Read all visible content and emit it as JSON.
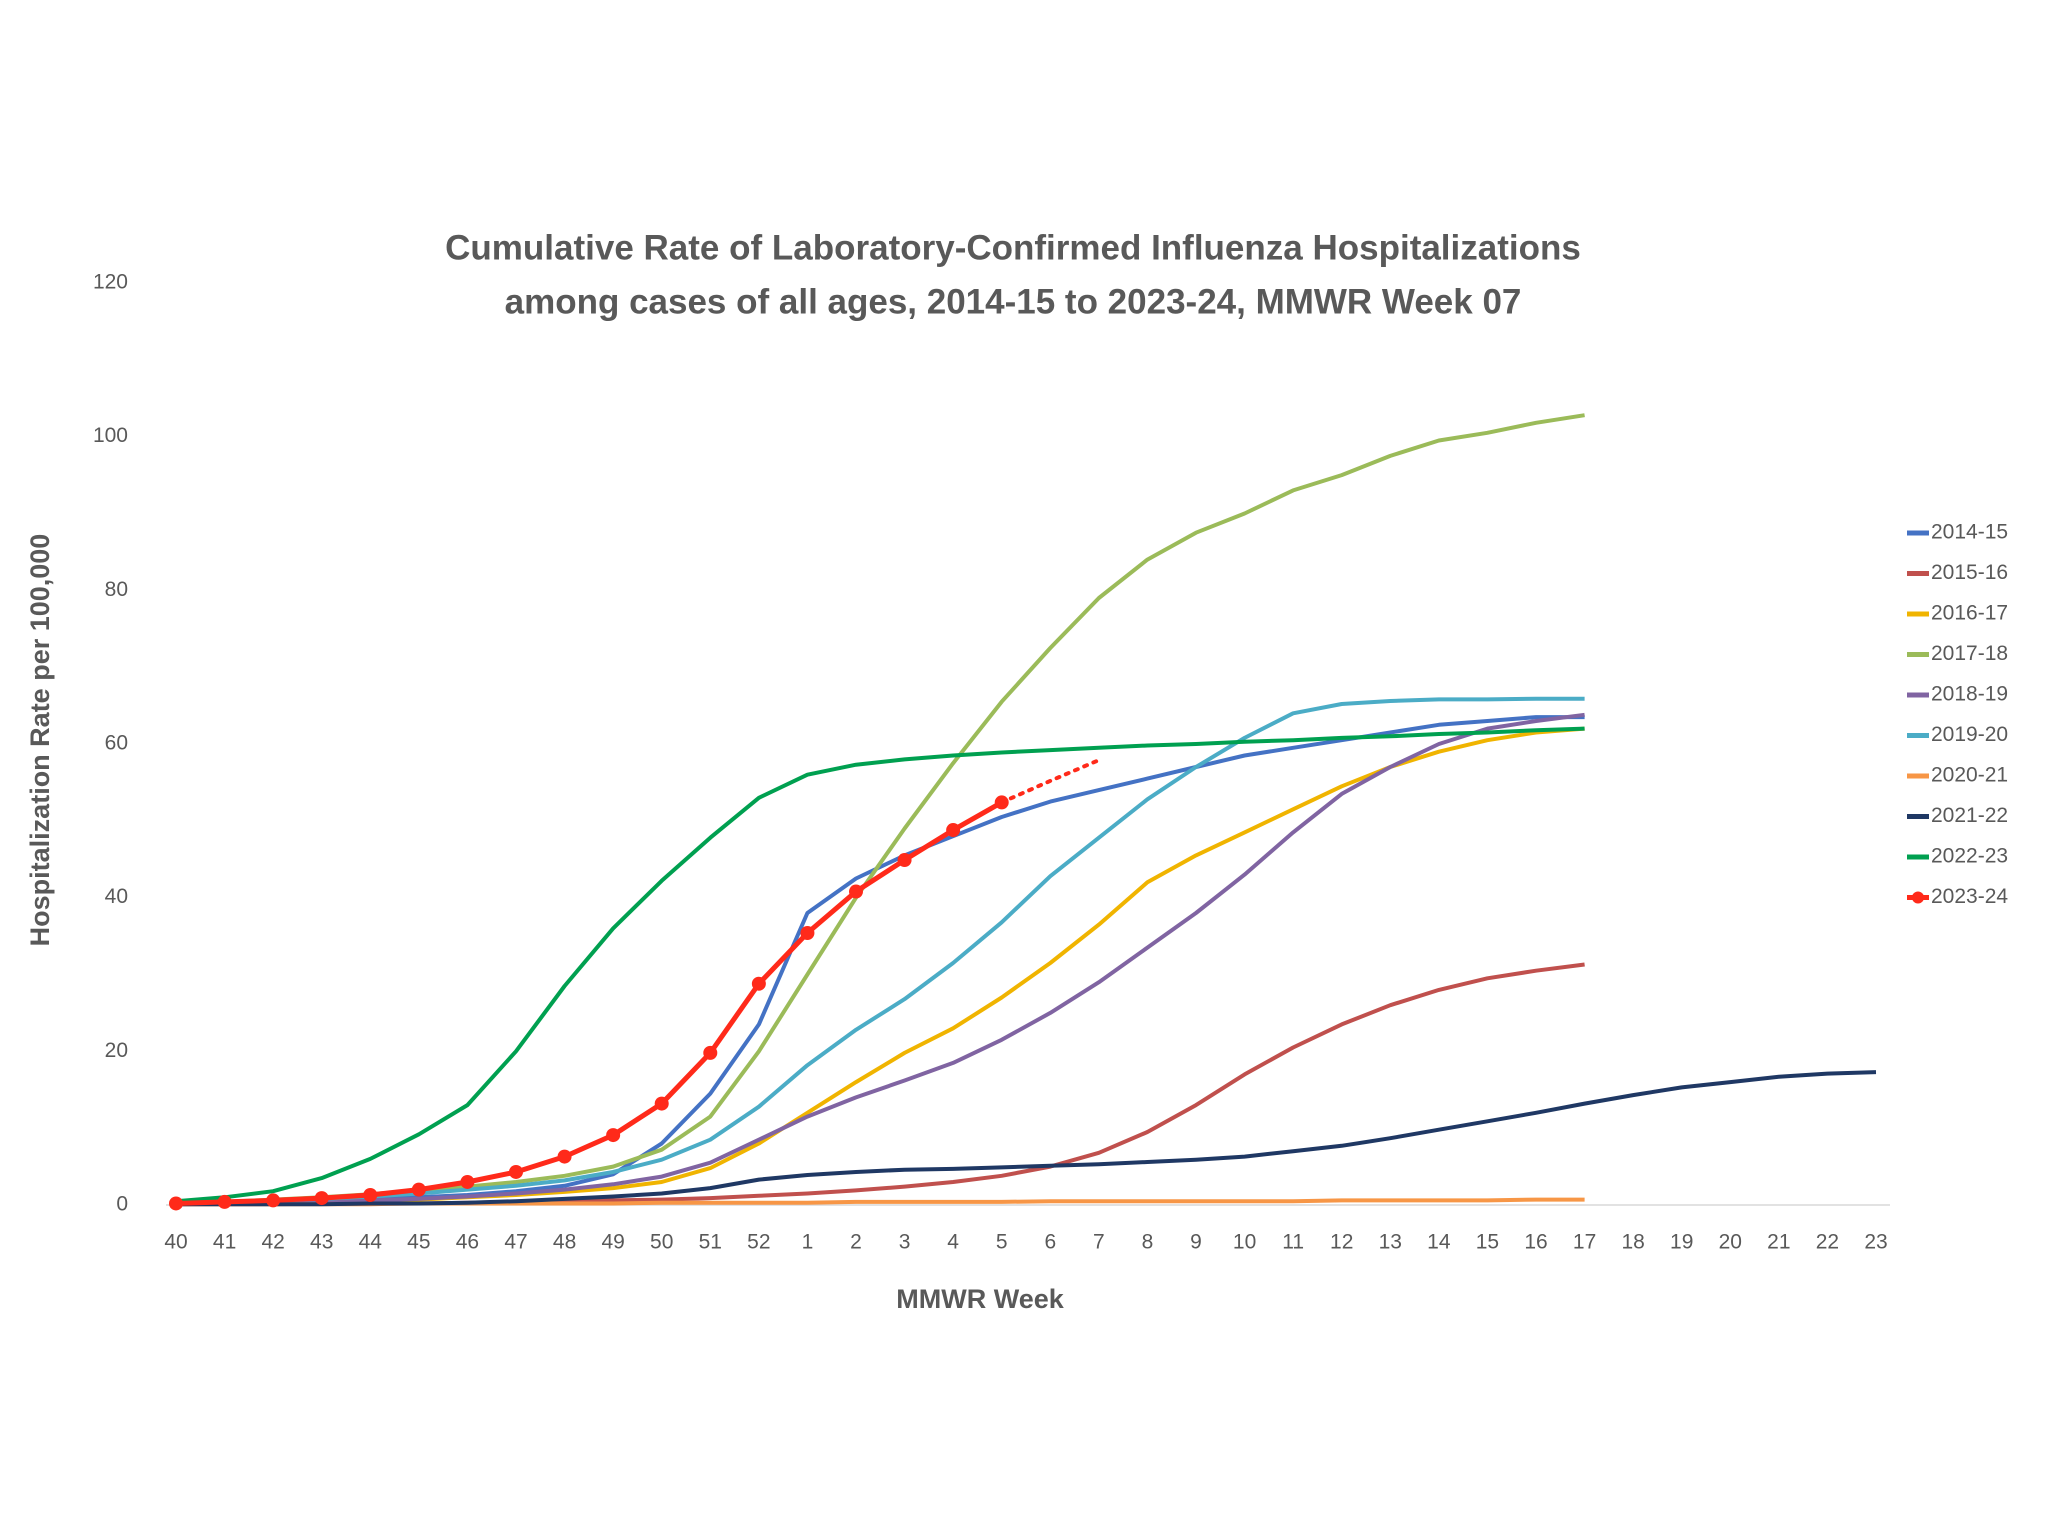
{
  "chart_data": {
    "type": "line",
    "title": [
      "Cumulative Rate of Laboratory-Confirmed Influenza Hospitalizations",
      "among cases of all ages, 2014-15 to 2023-24, MMWR Week 07"
    ],
    "x_label": "MMWR Week",
    "y_label": "Hospitalization Rate per 100,000",
    "categories": [
      "40",
      "41",
      "42",
      "43",
      "44",
      "45",
      "46",
      "47",
      "48",
      "49",
      "50",
      "51",
      "52",
      "1",
      "2",
      "3",
      "4",
      "5",
      "6",
      "7",
      "8",
      "9",
      "10",
      "11",
      "12",
      "13",
      "14",
      "15",
      "16",
      "17",
      "18",
      "19",
      "20",
      "21",
      "22",
      "23"
    ],
    "ylim": [
      0,
      120
    ],
    "yticks": [
      0,
      20,
      40,
      60,
      80,
      100,
      120
    ],
    "grid": false,
    "legend": "right",
    "series": [
      {
        "name": "2014-15",
        "color": "#4472c4",
        "values": [
          0.2,
          0.3,
          0.4,
          0.5,
          0.7,
          1,
          1.3,
          1.8,
          2.5,
          4,
          8,
          14.5,
          23.5,
          38,
          42.5,
          45.5,
          48,
          50.5,
          52.5,
          54,
          55.5,
          57,
          58.5,
          59.5,
          60.5,
          61.5,
          62.5,
          63,
          63.5,
          63.5,
          null,
          null,
          null,
          null,
          null,
          null
        ]
      },
      {
        "name": "2015-16",
        "color": "#c0504d",
        "values": [
          0.1,
          0.1,
          0.1,
          0.2,
          0.2,
          0.2,
          0.3,
          0.4,
          0.5,
          0.6,
          0.7,
          0.9,
          1.2,
          1.5,
          1.9,
          2.4,
          3,
          3.8,
          5,
          6.8,
          9.5,
          13,
          17,
          20.5,
          23.5,
          26,
          28,
          29.5,
          30.5,
          31.3,
          null,
          null,
          null,
          null,
          null,
          null
        ]
      },
      {
        "name": "2016-17",
        "color": "#f0b400",
        "values": [
          0.1,
          0.2,
          0.3,
          0.4,
          0.5,
          0.7,
          1,
          1.3,
          1.7,
          2.2,
          3,
          4.8,
          8,
          12,
          16,
          19.8,
          23,
          27,
          31.5,
          36.5,
          42,
          45.5,
          48.5,
          51.5,
          54.5,
          57,
          59,
          60.5,
          61.5,
          62,
          null,
          null,
          null,
          null,
          null,
          null
        ]
      },
      {
        "name": "2017-18",
        "color": "#9bbb59",
        "values": [
          0.2,
          0.4,
          0.7,
          1,
          1.4,
          1.9,
          2.4,
          3,
          3.8,
          5,
          7.2,
          11.5,
          20,
          30,
          40,
          49,
          57.5,
          65.5,
          72.5,
          79,
          84,
          87.5,
          90,
          93,
          95,
          97.5,
          99.5,
          100.5,
          101.8,
          102.8,
          null,
          null,
          null,
          null,
          null,
          null
        ]
      },
      {
        "name": "2018-19",
        "color": "#8064a2",
        "values": [
          0.1,
          0.2,
          0.3,
          0.4,
          0.6,
          0.8,
          1.1,
          1.5,
          2,
          2.7,
          3.7,
          5.5,
          8.5,
          11.5,
          14,
          16.2,
          18.5,
          21.5,
          25,
          29,
          33.5,
          38,
          43,
          48.5,
          53.5,
          57,
          60,
          62,
          63,
          63.8,
          null,
          null,
          null,
          null,
          null,
          null
        ]
      },
      {
        "name": "2019-20",
        "color": "#4bacc6",
        "values": [
          0.2,
          0.4,
          0.6,
          0.8,
          1.1,
          1.5,
          2,
          2.5,
          3.2,
          4.3,
          5.9,
          8.5,
          12.8,
          18.2,
          22.8,
          26.8,
          31.5,
          36.8,
          42.8,
          47.8,
          52.8,
          57,
          60.8,
          64,
          65.2,
          65.6,
          65.8,
          65.8,
          65.9,
          65.9,
          null,
          null,
          null,
          null,
          null,
          null
        ]
      },
      {
        "name": "2020-21",
        "color": "#f79646",
        "values": [
          0.1,
          0.1,
          0.1,
          0.1,
          0.1,
          0.2,
          0.2,
          0.2,
          0.2,
          0.2,
          0.3,
          0.3,
          0.3,
          0.3,
          0.4,
          0.4,
          0.4,
          0.4,
          0.5,
          0.5,
          0.5,
          0.5,
          0.5,
          0.5,
          0.6,
          0.6,
          0.6,
          0.6,
          0.7,
          0.7,
          null,
          null,
          null,
          null,
          null,
          null
        ]
      },
      {
        "name": "2021-22",
        "color": "#1f3864",
        "values": [
          0.1,
          0.1,
          0.1,
          0.1,
          0.2,
          0.2,
          0.3,
          0.5,
          0.8,
          1.1,
          1.5,
          2.2,
          3.3,
          3.9,
          4.3,
          4.6,
          4.7,
          4.9,
          5.1,
          5.3,
          5.6,
          5.9,
          6.3,
          7,
          7.7,
          8.7,
          9.8,
          10.9,
          12,
          13.2,
          14.3,
          15.3,
          16,
          16.7,
          17.1,
          17.3
        ]
      },
      {
        "name": "2022-23",
        "color": "#00a050",
        "values": [
          0.5,
          1,
          1.8,
          3.5,
          6,
          9.2,
          13,
          20,
          28.5,
          36,
          42.2,
          47.8,
          53,
          56,
          57.3,
          58,
          58.5,
          58.9,
          59.2,
          59.5,
          59.8,
          60,
          60.3,
          60.5,
          60.8,
          61,
          61.3,
          61.5,
          61.8,
          62,
          null,
          null,
          null,
          null,
          null,
          null
        ]
      },
      {
        "name": "2023-24",
        "color": "#ff2a1a",
        "markers": true,
        "values": [
          0.2,
          0.4,
          0.6,
          0.9,
          1.3,
          2,
          3,
          4.3,
          6.3,
          9.1,
          13.2,
          19.8,
          28.8,
          35.4,
          40.8,
          44.9,
          48.8,
          52.4,
          null,
          null,
          null,
          null,
          null,
          null,
          null,
          null,
          null,
          null,
          null,
          null,
          null,
          null,
          null,
          null,
          null,
          null
        ],
        "projection": [
          null,
          null,
          null,
          null,
          null,
          null,
          null,
          null,
          null,
          null,
          null,
          null,
          null,
          null,
          null,
          null,
          null,
          52.4,
          55.2,
          57.9,
          null,
          null,
          null,
          null,
          null,
          null,
          null,
          null,
          null,
          null,
          null,
          null,
          null,
          null,
          null,
          null
        ]
      }
    ]
  }
}
